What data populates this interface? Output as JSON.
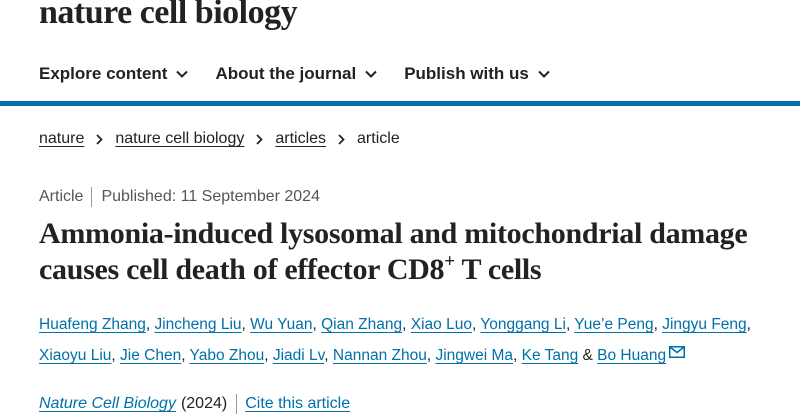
{
  "header": {
    "logo_text": "nature cell biology"
  },
  "nav": {
    "items": [
      "Explore content",
      "About the journal",
      "Publish with us"
    ]
  },
  "colors": {
    "accent": "#0070a8",
    "text": "#222222",
    "muted": "#555555"
  },
  "breadcrumb": {
    "items": [
      "nature",
      "nature cell biology",
      "articles"
    ],
    "current": "article"
  },
  "article": {
    "type": "Article",
    "published": "Published: 11 September 2024",
    "title_main": "Ammonia-induced lysosomal and mitochondrial damage causes cell death of effector CD8",
    "title_sup": "+",
    "title_end": " T cells",
    "authors": [
      "Huafeng Zhang",
      "Jincheng Liu",
      "Wu Yuan",
      "Qian Zhang",
      "Xiao Luo",
      "Yonggang Li",
      "Yue’e Peng",
      "Jingyu Feng",
      "Xiaoyu Liu",
      "Jie Chen",
      "Yabo Zhou",
      "Jiadi Lv",
      "Nannan Zhou",
      "Jingwei Ma",
      "Ke Tang",
      "Bo Huang"
    ],
    "author_sep": ", ",
    "last_sep": " & ",
    "mail_icon": "envelope-icon",
    "journal": "Nature Cell Biology",
    "year": "(2024)",
    "cite_label": "Cite this article"
  }
}
